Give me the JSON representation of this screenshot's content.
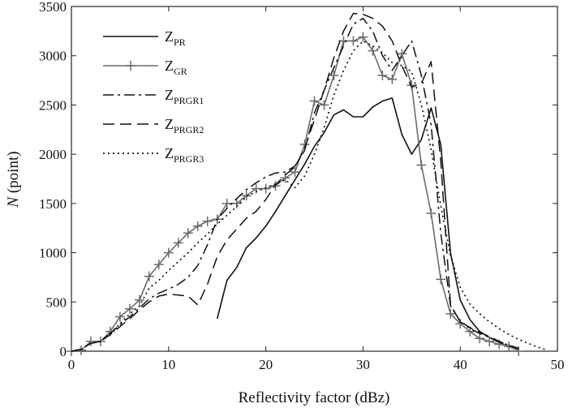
{
  "chart_data": {
    "type": "line",
    "title": "",
    "xlabel": "Reflectivity factor (dBz)",
    "ylabel_var": "N",
    "ylabel_rest": " (point)",
    "xlim": [
      0,
      50
    ],
    "ylim": [
      0,
      3500
    ],
    "xticks": [
      0,
      10,
      20,
      30,
      40,
      50
    ],
    "yticks": [
      0,
      500,
      1000,
      1500,
      2000,
      2500,
      3000,
      3500
    ],
    "grid": false,
    "legend_position": "top-left",
    "series": [
      {
        "name": "ZPR",
        "base": "Z",
        "sub": "PR",
        "style": "solid",
        "marker": "none",
        "color": "#111111",
        "x": [
          15,
          16,
          17,
          18,
          19,
          20,
          21,
          22,
          23,
          24,
          25,
          26,
          27,
          28,
          29,
          30,
          31,
          32,
          33,
          34,
          35,
          36,
          37,
          38,
          39,
          40,
          41,
          42,
          43,
          44,
          45
        ],
        "y": [
          330,
          720,
          850,
          1050,
          1150,
          1270,
          1420,
          1580,
          1740,
          1900,
          2080,
          2220,
          2400,
          2450,
          2380,
          2380,
          2480,
          2540,
          2570,
          2200,
          2000,
          2150,
          2470,
          2100,
          1000,
          520,
          320,
          200,
          140,
          90,
          40
        ]
      },
      {
        "name": "ZGR",
        "base": "Z",
        "sub": "GR",
        "style": "solid",
        "marker": "plus",
        "color": "#6b6b6b",
        "x": [
          0,
          1,
          2,
          3,
          4,
          5,
          6,
          7,
          8,
          9,
          10,
          11,
          12,
          13,
          14,
          15,
          16,
          17,
          18,
          19,
          20,
          21,
          22,
          23,
          24,
          25,
          26,
          27,
          28,
          29,
          30,
          31,
          32,
          33,
          34,
          35,
          36,
          37,
          38,
          39,
          40,
          41,
          42,
          43,
          44,
          45,
          46
        ],
        "y": [
          0,
          10,
          100,
          100,
          200,
          350,
          430,
          520,
          760,
          880,
          1000,
          1100,
          1200,
          1270,
          1320,
          1340,
          1500,
          1500,
          1580,
          1650,
          1650,
          1680,
          1760,
          1820,
          2100,
          2540,
          2500,
          2800,
          3150,
          3150,
          3190,
          3050,
          2800,
          2760,
          3020,
          2700,
          1890,
          1400,
          730,
          380,
          280,
          200,
          130,
          100,
          70,
          50,
          0
        ]
      },
      {
        "name": "ZPRGR1",
        "base": "Z",
        "sub": "PRGR1",
        "style": "dashdot",
        "marker": "none",
        "color": "#111111",
        "x": [
          0,
          1,
          2,
          3,
          4,
          5,
          6,
          7,
          8,
          9,
          10,
          11,
          12,
          13,
          14,
          15,
          16,
          17,
          18,
          19,
          20,
          21,
          22,
          23,
          24,
          25,
          26,
          27,
          28,
          29,
          30,
          31,
          32,
          33,
          34,
          35,
          36,
          37,
          38,
          39,
          40,
          41,
          42,
          43,
          44,
          45,
          46
        ],
        "y": [
          0,
          20,
          80,
          100,
          180,
          270,
          350,
          440,
          530,
          590,
          630,
          680,
          750,
          870,
          1080,
          1340,
          1450,
          1550,
          1640,
          1710,
          1770,
          1810,
          1820,
          1880,
          2040,
          2420,
          2650,
          2880,
          3100,
          3320,
          3380,
          3250,
          3000,
          2850,
          3000,
          3150,
          2800,
          2300,
          1200,
          460,
          300,
          230,
          180,
          140,
          100,
          60,
          30
        ]
      },
      {
        "name": "ZPRGR2",
        "base": "Z",
        "sub": "PRGR2",
        "style": "dashed",
        "marker": "none",
        "color": "#111111",
        "x": [
          0,
          1,
          2,
          3,
          4,
          5,
          6,
          7,
          8,
          9,
          10,
          11,
          12,
          13,
          14,
          15,
          16,
          17,
          18,
          19,
          20,
          21,
          22,
          23,
          24,
          25,
          26,
          27,
          28,
          29,
          30,
          31,
          32,
          33,
          34,
          35,
          36,
          37,
          38,
          39,
          40,
          41,
          42,
          43,
          44,
          45,
          46
        ],
        "y": [
          0,
          20,
          80,
          100,
          170,
          250,
          330,
          420,
          500,
          560,
          580,
          570,
          560,
          470,
          680,
          960,
          1130,
          1240,
          1350,
          1420,
          1540,
          1690,
          1790,
          1870,
          2060,
          2350,
          2650,
          2980,
          3250,
          3430,
          3420,
          3380,
          3300,
          3150,
          2900,
          2680,
          2720,
          2940,
          1930,
          470,
          300,
          240,
          190,
          150,
          100,
          60,
          20
        ]
      },
      {
        "name": "ZPRGR3",
        "base": "Z",
        "sub": "PRGR3",
        "style": "dotted",
        "marker": "none",
        "color": "#111111",
        "x": [
          0,
          1,
          2,
          3,
          4,
          5,
          6,
          7,
          8,
          9,
          10,
          11,
          12,
          13,
          14,
          15,
          16,
          17,
          18,
          19,
          20,
          21,
          22,
          23,
          24,
          25,
          26,
          27,
          28,
          29,
          30,
          31,
          32,
          33,
          34,
          35,
          36,
          37,
          38,
          39,
          40,
          41,
          42,
          43,
          44,
          45,
          46,
          47,
          48,
          49
        ],
        "y": [
          0,
          20,
          80,
          100,
          180,
          280,
          380,
          460,
          640,
          720,
          820,
          910,
          1000,
          1100,
          1190,
          1290,
          1380,
          1470,
          1570,
          1620,
          1660,
          1700,
          1740,
          1660,
          1780,
          2000,
          2270,
          2600,
          2850,
          3050,
          3150,
          3100,
          3030,
          2930,
          2900,
          2840,
          2500,
          2050,
          1480,
          970,
          650,
          480,
          380,
          300,
          230,
          170,
          120,
          80,
          40,
          10
        ]
      }
    ]
  }
}
